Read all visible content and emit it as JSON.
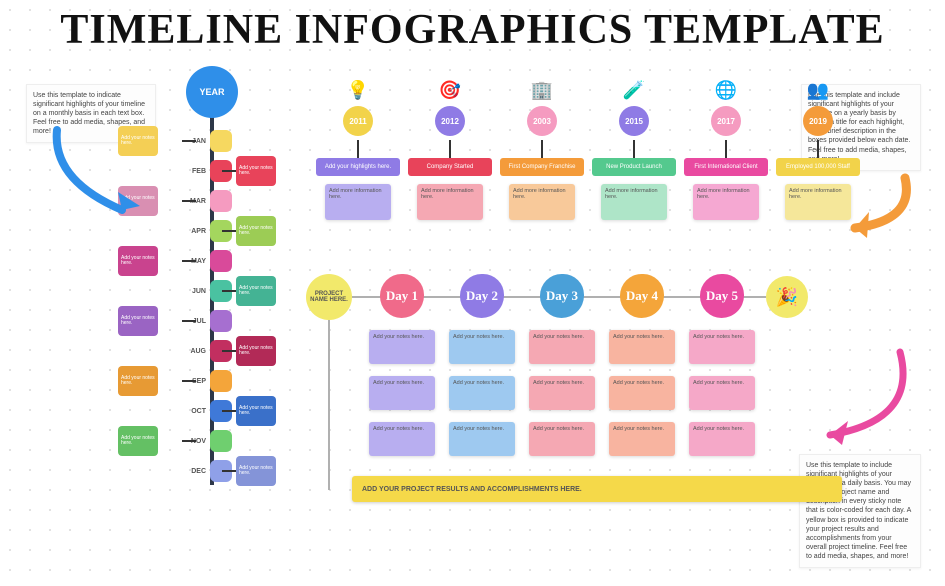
{
  "title": "TIMELINE INFOGRAPHICS TEMPLATE",
  "notes": {
    "left": "Use this template to indicate significant highlights of your timeline on a monthly basis in each text box.\n\nFeel free to add media, shapes, and more!",
    "right_top": "Use this template and include significant highlights of your timeline on a yearly basis by writing a title for each highlight, and a brief description in the boxes provided below each date.\n\nFeel free to add media, shapes, and more!",
    "right_bottom": "Use this template to include significant highlights of your timeline on a daily basis.\n\nYou may add your project name and description in every sticky note that is color-coded for each day. A yellow box is provided to indicate your project results and accomplishments from your overall project timeline.\n\nFeel free to add media, shapes, and more!"
  },
  "year_circle": "YEAR",
  "months": [
    {
      "abbr": "JAN",
      "node": "#f6d860",
      "box": "#f4cf55",
      "side": "L"
    },
    {
      "abbr": "FEB",
      "node": "#e8435a",
      "box": "#e8435a",
      "side": "R"
    },
    {
      "abbr": "MAR",
      "node": "#f59bc0",
      "box": "#d98fb2",
      "side": "L"
    },
    {
      "abbr": "APR",
      "node": "#a4d65e",
      "box": "#9ccc55",
      "side": "R"
    },
    {
      "abbr": "MAY",
      "node": "#d94a9a",
      "box": "#c9438e",
      "side": "L"
    },
    {
      "abbr": "JUN",
      "node": "#4ac2a1",
      "box": "#44b394",
      "side": "R"
    },
    {
      "abbr": "JUL",
      "node": "#a66fd0",
      "box": "#9a64c3",
      "side": "L"
    },
    {
      "abbr": "AUG",
      "node": "#c22f60",
      "box": "#b22a57",
      "side": "R"
    },
    {
      "abbr": "SEP",
      "node": "#f4a53a",
      "box": "#e79a34",
      "side": "L"
    },
    {
      "abbr": "OCT",
      "node": "#3f79d8",
      "box": "#3a70c9",
      "side": "R"
    },
    {
      "abbr": "NOV",
      "node": "#6fcf6f",
      "box": "#64c064",
      "side": "L"
    },
    {
      "abbr": "DEC",
      "node": "#8fa0e8",
      "box": "#8494d8",
      "side": "R"
    }
  ],
  "month_box_text": "Add your notes here.",
  "yearly": {
    "cols": [
      {
        "year": "2011",
        "circle": "#f2d34a",
        "bar": "#8f7be5",
        "bar_label": "Add your highlights here.",
        "icon": "💡",
        "info_bg": "#b8aef0"
      },
      {
        "year": "2012",
        "circle": "#8f7be5",
        "bar": "#e8435a",
        "bar_label": "Company Started",
        "icon": "🎯",
        "info_bg": "#f5a8b3"
      },
      {
        "year": "2003",
        "circle": "#f59bc0",
        "bar": "#f49b3a",
        "bar_label": "First Company Franchise",
        "icon": "🏢",
        "info_bg": "#f8c99a"
      },
      {
        "year": "2015",
        "circle": "#8f7be5",
        "bar": "#54c98e",
        "bar_label": "New Product Launch",
        "icon": "🧪",
        "info_bg": "#aee5c8"
      },
      {
        "year": "2017",
        "circle": "#f59bc0",
        "bar": "#e94aa0",
        "bar_label": "First International Client",
        "icon": "🌐",
        "info_bg": "#f5a8d2"
      },
      {
        "year": "2019",
        "circle": "#f49b3a",
        "bar": "#f2d34a",
        "bar_label": "Employed 100,000 Staff",
        "icon": "👥",
        "info_bg": "#f5e79a"
      }
    ],
    "info_text": "Add more information here."
  },
  "daily": {
    "project_label": "PROJECT NAME HERE.",
    "days": [
      {
        "label": "Day 1",
        "blob": "#f06a8a",
        "cells": "#b8aef0"
      },
      {
        "label": "Day 2",
        "blob": "#8f7be5",
        "cells": "#9ec9f0"
      },
      {
        "label": "Day 3",
        "blob": "#4aa0d8",
        "cells": "#f5a8b3"
      },
      {
        "label": "Day 4",
        "blob": "#f4a53a",
        "cells": "#f8b4a0"
      },
      {
        "label": "Day 5",
        "blob": "#e94aa0",
        "cells": "#f5a8c8"
      }
    ],
    "cell_text": "Add your notes here.",
    "end_icon": "🎉",
    "results": "ADD YOUR PROJECT RESULTS AND ACCOMPLISHMENTS HERE."
  },
  "arrows": {
    "blue": "#2f8fe9",
    "orange": "#f49b3a",
    "pink": "#e94aa0"
  }
}
